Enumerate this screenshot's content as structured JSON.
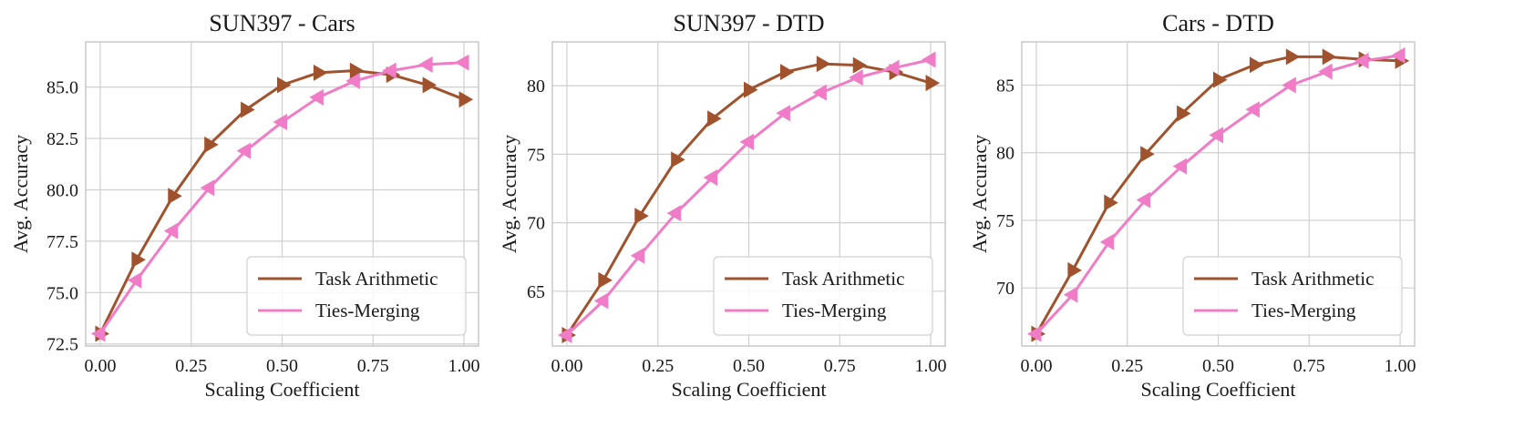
{
  "chart_data": [
    {
      "type": "line",
      "title": "SUN397 - Cars",
      "xlabel": "Scaling Coefficient",
      "ylabel": "Avg. Accuracy",
      "xlim": [
        -0.04,
        1.04
      ],
      "ylim": [
        72.4,
        87.2
      ],
      "xticks": [
        0,
        0.25,
        0.5,
        0.75,
        1
      ],
      "xtick_labels": [
        "0.00",
        "0.25",
        "0.50",
        "0.75",
        "1.00"
      ],
      "yticks": [
        72.5,
        75,
        77.5,
        80,
        82.5,
        85
      ],
      "ytick_labels": [
        "72.5",
        "75.0",
        "77.5",
        "80.0",
        "82.5",
        "85.0"
      ],
      "grid": true,
      "legend_position": "lower-right",
      "x": [
        0,
        0.1,
        0.2,
        0.3,
        0.4,
        0.5,
        0.6,
        0.7,
        0.8,
        0.9,
        1.0
      ],
      "series": [
        {
          "name": "Task Arithmetic",
          "color": "#a0522d",
          "marker": "triangle-right",
          "values": [
            73.0,
            76.6,
            79.7,
            82.2,
            83.9,
            85.1,
            85.7,
            85.8,
            85.6,
            85.1,
            84.4
          ]
        },
        {
          "name": "Ties-Merging",
          "color": "#f07cc7",
          "marker": "triangle-left",
          "values": [
            73.0,
            75.6,
            78.0,
            80.1,
            81.9,
            83.3,
            84.5,
            85.3,
            85.8,
            86.1,
            86.2
          ]
        }
      ]
    },
    {
      "type": "line",
      "title": "SUN397 - DTD",
      "xlabel": "Scaling Coefficient",
      "ylabel": "Avg. Accuracy",
      "xlim": [
        -0.04,
        1.04
      ],
      "ylim": [
        61.0,
        83.2
      ],
      "xticks": [
        0,
        0.25,
        0.5,
        0.75,
        1
      ],
      "xtick_labels": [
        "0.00",
        "0.25",
        "0.50",
        "0.75",
        "1.00"
      ],
      "yticks": [
        65,
        70,
        75,
        80
      ],
      "ytick_labels": [
        "65",
        "70",
        "75",
        "80"
      ],
      "grid": true,
      "legend_position": "lower-right",
      "x": [
        0,
        0.1,
        0.2,
        0.3,
        0.4,
        0.5,
        0.6,
        0.7,
        0.8,
        0.9,
        1.0
      ],
      "series": [
        {
          "name": "Task Arithmetic",
          "color": "#a0522d",
          "marker": "triangle-right",
          "values": [
            61.8,
            65.8,
            70.5,
            74.6,
            77.6,
            79.7,
            81.0,
            81.6,
            81.5,
            81.0,
            80.2
          ]
        },
        {
          "name": "Ties-Merging",
          "color": "#f07cc7",
          "marker": "triangle-left",
          "values": [
            61.8,
            64.3,
            67.6,
            70.7,
            73.3,
            75.9,
            78.0,
            79.5,
            80.6,
            81.3,
            81.9
          ]
        }
      ]
    },
    {
      "type": "line",
      "title": "Cars - DTD",
      "xlabel": "Scaling Coefficient",
      "ylabel": "Avg. Accuracy",
      "xlim": [
        -0.04,
        1.04
      ],
      "ylim": [
        65.7,
        88.2
      ],
      "xticks": [
        0,
        0.25,
        0.5,
        0.75,
        1
      ],
      "xtick_labels": [
        "0.00",
        "0.25",
        "0.50",
        "0.75",
        "1.00"
      ],
      "yticks": [
        70,
        75,
        80,
        85
      ],
      "ytick_labels": [
        "70",
        "75",
        "80",
        "85"
      ],
      "grid": true,
      "legend_position": "lower-right",
      "x": [
        0,
        0.1,
        0.2,
        0.3,
        0.4,
        0.5,
        0.6,
        0.7,
        0.8,
        0.9,
        1.0
      ],
      "series": [
        {
          "name": "Task Arithmetic",
          "color": "#a0522d",
          "marker": "triangle-right",
          "values": [
            66.6,
            71.3,
            76.3,
            79.9,
            82.9,
            85.4,
            86.5,
            87.1,
            87.1,
            86.9,
            86.8
          ]
        },
        {
          "name": "Ties-Merging",
          "color": "#f07cc7",
          "marker": "triangle-left",
          "values": [
            66.6,
            69.5,
            73.4,
            76.5,
            79.0,
            81.3,
            83.2,
            85.0,
            86.0,
            86.8,
            87.2
          ]
        }
      ]
    }
  ]
}
